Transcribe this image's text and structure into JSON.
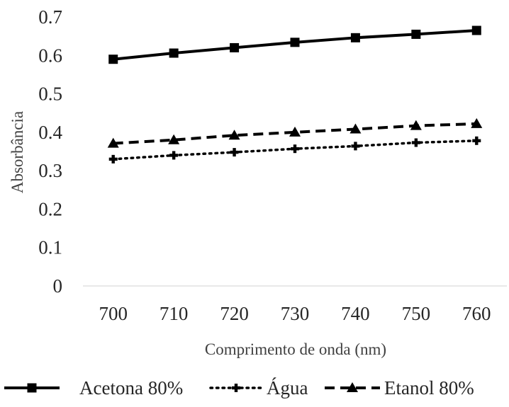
{
  "chart_data": {
    "type": "line",
    "title": "",
    "xlabel": "Comprimento de onda (nm)",
    "ylabel": "Absorbância",
    "categories": [
      "700",
      "710",
      "720",
      "730",
      "740",
      "750",
      "760"
    ],
    "ylim": [
      0,
      0.7
    ],
    "yticks": [
      "0",
      "0.1",
      "0.2",
      "0.3",
      "0.4",
      "0.5",
      "0.6",
      "0.7"
    ],
    "grid": false,
    "legend_position": "bottom",
    "series": [
      {
        "name": "Acetona 80%",
        "values": [
          0.59,
          0.606,
          0.62,
          0.634,
          0.646,
          0.655,
          0.665
        ],
        "line_style": "solid",
        "marker": "square",
        "color": "#000000"
      },
      {
        "name": "Água",
        "values": [
          0.33,
          0.34,
          0.348,
          0.357,
          0.364,
          0.373,
          0.378
        ],
        "line_style": "dotted",
        "marker": "plus",
        "color": "#000000"
      },
      {
        "name": "Etanol 80%",
        "values": [
          0.371,
          0.38,
          0.392,
          0.4,
          0.408,
          0.417,
          0.422
        ],
        "line_style": "dashed",
        "marker": "triangle",
        "color": "#000000"
      }
    ]
  }
}
